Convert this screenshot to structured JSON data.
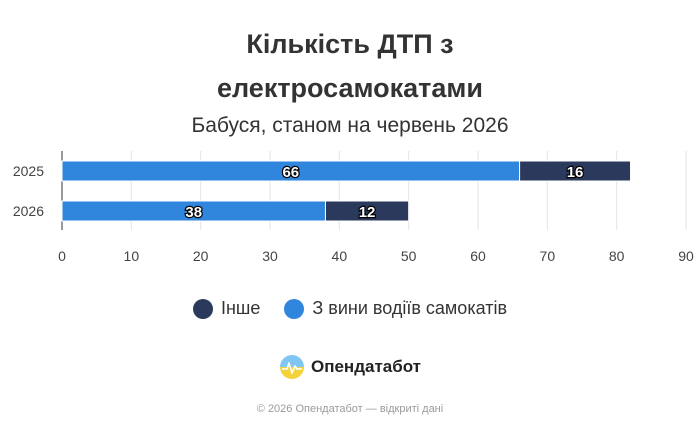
{
  "chart_data": {
    "type": "bar",
    "orientation": "horizontal",
    "stacked": true,
    "title_lines": [
      "Кількість ДТП з",
      "електросамокатами"
    ],
    "subtitle": "Бабуся, станом на червень 2026",
    "categories": [
      "2025",
      "2026"
    ],
    "series": [
      {
        "name": "З вини водіїв самокатів",
        "color": "#2f86dc",
        "values": [
          66,
          38
        ]
      },
      {
        "name": "Інше",
        "color": "#2b3a5c",
        "values": [
          16,
          12
        ]
      }
    ],
    "xlim": [
      0,
      90
    ],
    "xticks": [
      "0",
      "10",
      "20",
      "30",
      "40",
      "50",
      "60",
      "70",
      "80",
      "90"
    ],
    "grid": true,
    "legend_position": "bottom"
  },
  "legend": [
    {
      "label": "Інше",
      "color": "#2b3a5c"
    },
    {
      "label": "З вини водіїв самокатів",
      "color": "#2f86dc"
    }
  ],
  "brand": {
    "name": "Опендатабот"
  },
  "footer": "© 2026 Опендатабот — відкриті дані"
}
